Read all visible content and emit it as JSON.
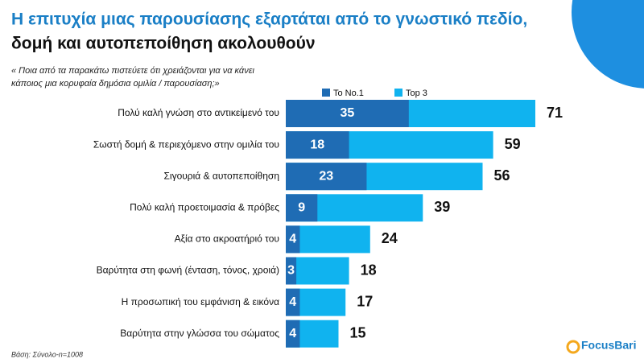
{
  "chart_data": {
    "type": "bar",
    "title": "Η επιτυχία μιας παρουσίασης εξαρτάται από το γνωστικό πεδίο,",
    "subtitle": "δομή και αυτοπεποίθηση ακολουθούν",
    "question": [
      "« Ποια από τα παρακάτω πιστεύετε ότι χρειάζονται για να κάνει",
      "κάποιος μια κορυφαία δημόσια ομιλία / παρουσίαση;»"
    ],
    "categories": [
      "Πολύ καλή γνώση στο αντικείμενό του",
      "Σωστή δομή & περιεχόμενο στην ομιλία του",
      "Σιγουριά &  αυτοπεποίθηση",
      "Πολύ καλή προετοιμασία &  πρόβες",
      "Αξία στο ακροατήριό του",
      "Βαρύτητα στη φωνή (ένταση, τόνος, χροιά)",
      "Η προσωπική του εμφάνιση & εικόνα",
      "Βαρύτητα στην γλώσσα του σώματος"
    ],
    "series": [
      {
        "name": "Το No.1",
        "color": "#1f6cb4",
        "values": [
          35,
          18,
          23,
          9,
          4,
          3,
          4,
          4
        ]
      },
      {
        "name": "Top 3",
        "color": "#10b3ef",
        "values": [
          71,
          59,
          56,
          39,
          24,
          18,
          17,
          15
        ]
      }
    ],
    "note": "Βάση: Σύνολο-n=1008",
    "logo": "FocusBari"
  }
}
